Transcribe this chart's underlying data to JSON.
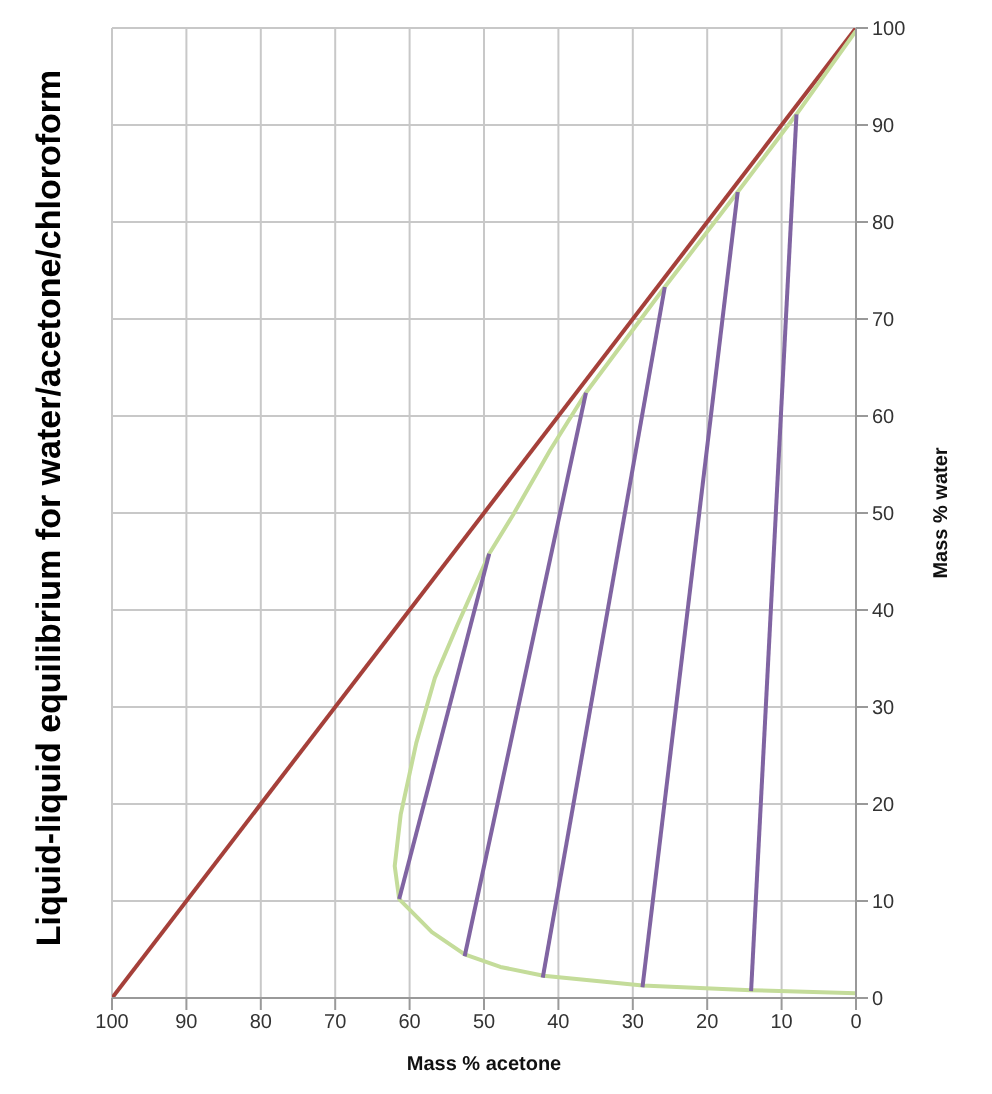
{
  "chart_data": {
    "type": "line",
    "title": "Liquid-liquid equilibrium for water/acetone/chloroform",
    "xlabel": "Mass % acetone",
    "ylabel": "Mass % water",
    "xlim": [
      100,
      0
    ],
    "ylim": [
      0,
      100
    ],
    "xticks": [
      100,
      90,
      80,
      70,
      60,
      50,
      40,
      30,
      20,
      10,
      0
    ],
    "yticks": [
      0,
      10,
      20,
      30,
      40,
      50,
      60,
      70,
      80,
      90,
      100
    ],
    "grid": true,
    "marker": "none",
    "line_style": "solid",
    "series": [
      {
        "color": "#a5403a",
        "x": [
          100,
          0
        ],
        "values": [
          0,
          100
        ]
      },
      {
        "color": "#c4dc9a",
        "x": [
          0,
          14.1,
          28.7,
          42,
          47.8,
          52.6,
          57,
          61.4,
          62,
          61.2,
          59.1,
          56.6,
          53.6,
          49.3,
          46.1,
          41.1,
          36.3,
          25.7,
          15.9,
          8,
          0
        ],
        "values": [
          0.5,
          0.8,
          1.3,
          2.3,
          3.2,
          4.5,
          6.8,
          10.2,
          13.6,
          18.9,
          26.3,
          33,
          38.4,
          45.8,
          49.8,
          56.5,
          62.4,
          73.3,
          83.1,
          91.1,
          99.7
        ]
      },
      {
        "color": "#8064a2",
        "x": [
          61.4,
          49.3
        ],
        "values": [
          10.2,
          45.8
        ]
      },
      {
        "color": "#8064a2",
        "x": [
          52.6,
          36.3
        ],
        "values": [
          4.3,
          62.4
        ]
      },
      {
        "color": "#8064a2",
        "x": [
          42.1,
          25.7
        ],
        "values": [
          2.1,
          73.3
        ]
      },
      {
        "color": "#8064a2",
        "x": [
          28.7,
          15.9
        ],
        "values": [
          1.1,
          83.1
        ]
      },
      {
        "color": "#8064a2",
        "x": [
          14.1,
          8
        ],
        "values": [
          0.7,
          91.1
        ]
      }
    ]
  }
}
